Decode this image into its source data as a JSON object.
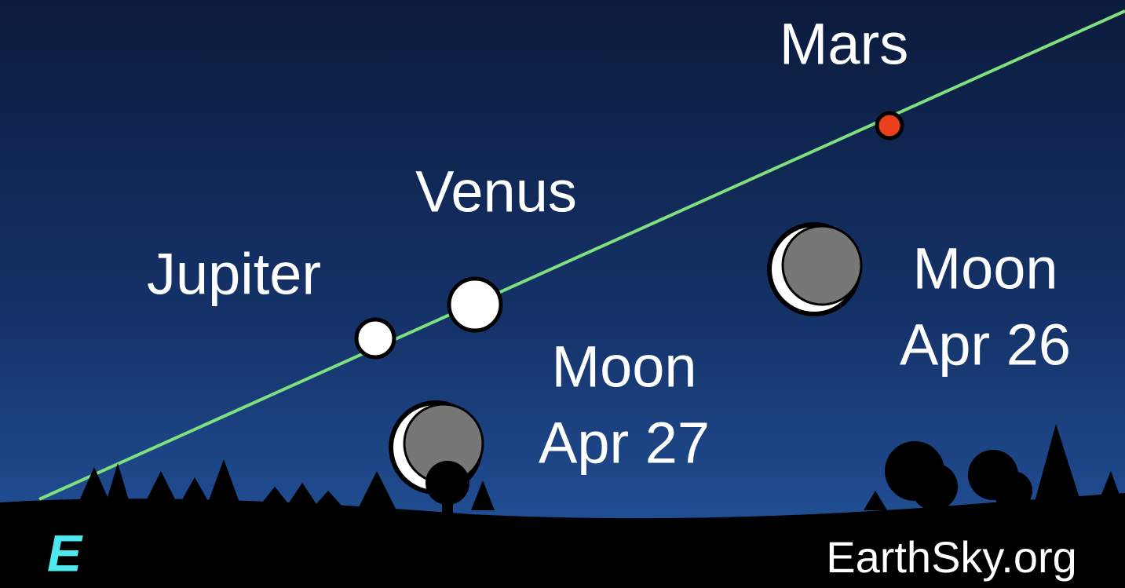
{
  "bodies": [
    {
      "name": "Mars"
    },
    {
      "name": "Venus"
    },
    {
      "name": "Jupiter"
    }
  ],
  "moons": [
    {
      "name": "Moon",
      "date": "Apr 26"
    },
    {
      "name": "Moon",
      "date": "Apr 27"
    }
  ],
  "direction": "E",
  "credit": "EarthSky.org"
}
